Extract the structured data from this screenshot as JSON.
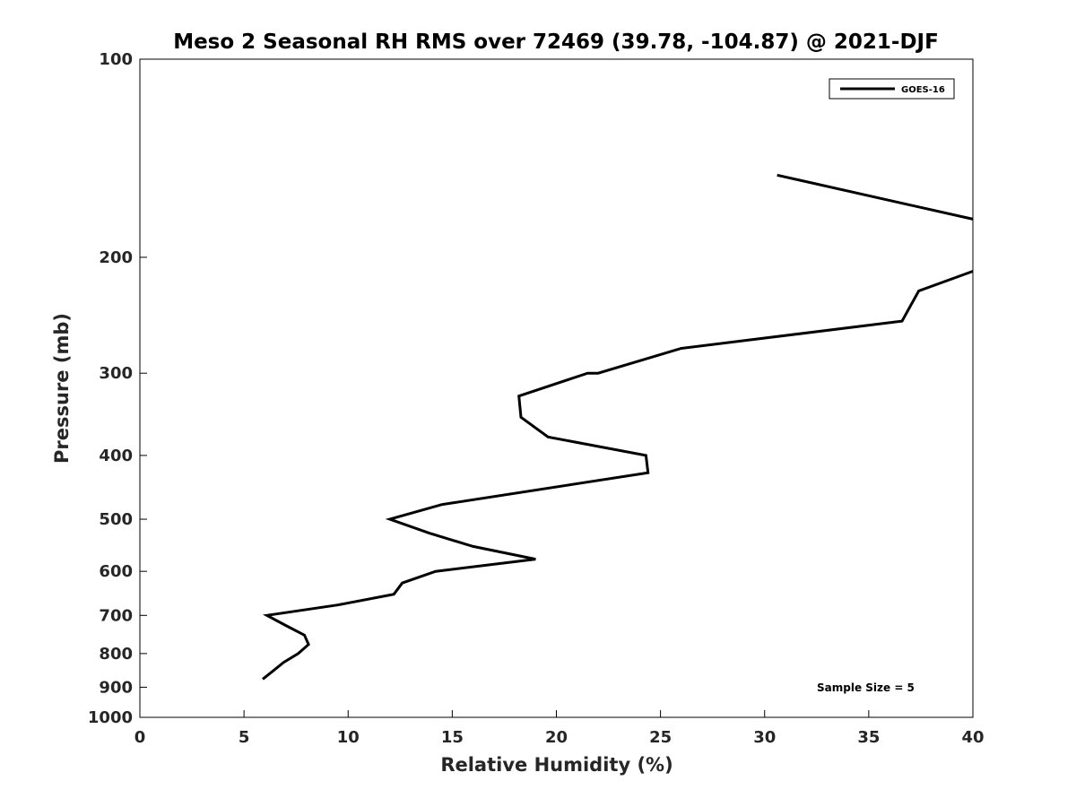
{
  "chart_data": {
    "type": "line",
    "title": "Meso 2 Seasonal RH RMS over 72469 (39.78, -104.87) @ 2021-DJF",
    "xlabel": "Relative Humidity (%)",
    "ylabel": "Pressure (mb)",
    "xlim": [
      0,
      40
    ],
    "ylim": [
      100,
      1000
    ],
    "y_scale": "log",
    "y_reversed": true,
    "x_ticks": [
      0,
      5,
      10,
      15,
      20,
      25,
      30,
      35,
      40
    ],
    "y_ticks": [
      100,
      200,
      300,
      400,
      500,
      600,
      700,
      800,
      900,
      1000
    ],
    "legend": {
      "position": "top-right",
      "entries": [
        "GOES-16"
      ]
    },
    "annotation": "Sample Size = 5",
    "grid": false,
    "series": [
      {
        "name": "GOES-16",
        "color": "#000000",
        "segments": [
          [
            {
              "x": 30.6,
              "p": 150
            },
            {
              "x": 40.0,
              "p": 175
            }
          ],
          [
            {
              "x": 40.0,
              "p": 210
            },
            {
              "x": 37.4,
              "p": 225
            },
            {
              "x": 36.6,
              "p": 250
            },
            {
              "x": 26.0,
              "p": 275
            },
            {
              "x": 22.0,
              "p": 300
            },
            {
              "x": 21.5,
              "p": 300
            },
            {
              "x": 18.2,
              "p": 325
            },
            {
              "x": 18.3,
              "p": 350
            },
            {
              "x": 19.6,
              "p": 375
            },
            {
              "x": 24.3,
              "p": 400
            },
            {
              "x": 24.4,
              "p": 425
            },
            {
              "x": 14.5,
              "p": 475
            },
            {
              "x": 12.0,
              "p": 500
            },
            {
              "x": 13.9,
              "p": 525
            },
            {
              "x": 16.0,
              "p": 550
            },
            {
              "x": 19.0,
              "p": 575
            },
            {
              "x": 14.2,
              "p": 600
            },
            {
              "x": 12.6,
              "p": 625
            },
            {
              "x": 12.2,
              "p": 650
            },
            {
              "x": 9.5,
              "p": 675
            },
            {
              "x": 6.1,
              "p": 700
            },
            {
              "x": 7.0,
              "p": 725
            },
            {
              "x": 7.9,
              "p": 750
            },
            {
              "x": 8.1,
              "p": 775
            },
            {
              "x": 7.6,
              "p": 800
            },
            {
              "x": 6.9,
              "p": 825
            },
            {
              "x": 6.4,
              "p": 850
            },
            {
              "x": 5.9,
              "p": 875
            }
          ]
        ]
      }
    ]
  }
}
